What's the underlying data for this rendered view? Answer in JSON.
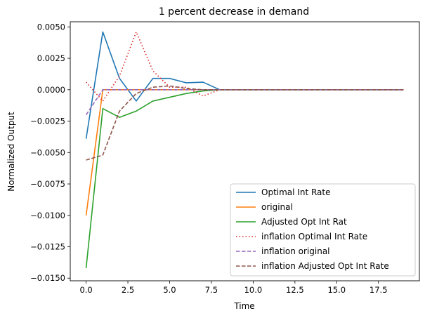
{
  "chart_data": {
    "type": "line",
    "title": "1 percent decrease in demand",
    "xlabel": "Time",
    "ylabel": "Normalized Output",
    "xlim": [
      -0.95,
      19.95
    ],
    "ylim": [
      -0.01521,
      0.00541
    ],
    "x_ticks": [
      0,
      2.5,
      5,
      7.5,
      10,
      12.5,
      15,
      17.5
    ],
    "x_tick_labels": [
      "0.0",
      "2.5",
      "5.0",
      "7.5",
      "10.0",
      "12.5",
      "15.0",
      "17.5"
    ],
    "y_ticks": [
      -0.015,
      -0.0125,
      -0.01,
      -0.0075,
      -0.005,
      -0.0025,
      0,
      0.0025,
      0.005
    ],
    "y_tick_labels": [
      "−0.0150",
      "−0.0125",
      "−0.0100",
      "−0.0075",
      "−0.0050",
      "−0.0025",
      "0.0000",
      "0.0025",
      "0.0050"
    ],
    "grid": false,
    "legend_position": "lower-right",
    "x": [
      0,
      1,
      2,
      3,
      4,
      5,
      6,
      7,
      8,
      9,
      10,
      11,
      12,
      13,
      14,
      15,
      16,
      17,
      18,
      19
    ],
    "series": [
      {
        "name": "Optimal Int Rate",
        "color": "#1f77b4",
        "dash": "solid",
        "values": [
          -0.0039,
          0.0046,
          0.0009,
          -0.0009,
          0.0009,
          0.0009,
          0.00055,
          0.0006,
          0,
          0,
          0,
          0,
          0,
          0,
          0,
          0,
          0,
          0,
          0,
          0
        ]
      },
      {
        "name": "original",
        "color": "#ff7f0e",
        "dash": "solid",
        "values": [
          -0.01,
          0,
          0,
          0,
          0,
          0,
          0,
          0,
          0,
          0,
          0,
          0,
          0,
          0,
          0,
          0,
          0,
          0,
          0,
          0
        ]
      },
      {
        "name": "Adjusted Opt Int Rat",
        "color": "#2ca02c",
        "dash": "solid",
        "values": [
          -0.0142,
          -0.0015,
          -0.0022,
          -0.0017,
          -0.0009,
          -0.0006,
          -0.0003,
          -0.0001,
          0,
          0,
          0,
          0,
          0,
          0,
          0,
          0,
          0,
          0,
          0,
          0
        ]
      },
      {
        "name": "inflation Optimal Int Rate",
        "color": "#d62728",
        "dash": "dotted",
        "values": [
          0.0006,
          -0.0009,
          0.0011,
          0.0046,
          0.0015,
          0.0002,
          0.0002,
          -0.0005,
          0,
          0,
          0,
          0,
          0,
          0,
          0,
          0,
          0,
          0,
          0,
          0
        ]
      },
      {
        "name": "inflation original",
        "color": "#9467bd",
        "dash": "dashed",
        "values": [
          -0.002,
          0,
          0,
          0,
          0,
          0,
          0,
          0,
          0,
          0,
          0,
          0,
          0,
          0,
          0,
          0,
          0,
          0,
          0,
          0
        ]
      },
      {
        "name": "inflation Adjusted Opt Int Rate",
        "color": "#8c564b",
        "dash": "dashed",
        "values": [
          -0.0056,
          -0.0052,
          -0.0017,
          -0.0003,
          0.0002,
          0.0003,
          0.0001,
          0,
          0,
          0,
          0,
          0,
          0,
          0,
          0,
          0,
          0,
          0,
          0,
          0
        ]
      }
    ]
  }
}
